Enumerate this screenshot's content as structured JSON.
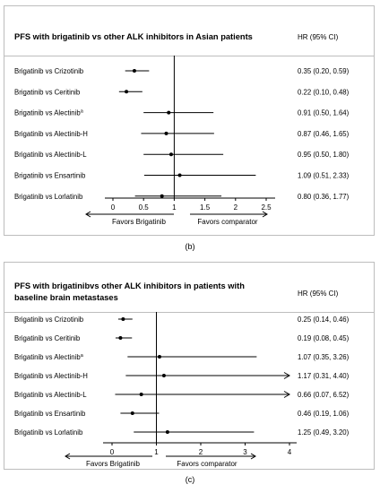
{
  "captions": {
    "b": "(b)",
    "c": "(c)"
  },
  "chart_data": [
    {
      "type": "forest",
      "title": "PFS with brigatinib vs other ALK inhibitors in Asian patients",
      "hr_header": "HR (95% CI)",
      "xlim": [
        0,
        2.5
      ],
      "ref_line": 1,
      "xticks": [
        "0",
        "0.5",
        "1",
        "1.5",
        "2",
        "2.5"
      ],
      "favors_left": "Favors Brigatinib",
      "favors_right": "Favors comparator",
      "rows": [
        {
          "label": "Brigatinib vs Crizotinib",
          "hr": 0.35,
          "lo": 0.2,
          "hi": 0.59,
          "hr_text": "0.35 (0.20, 0.59)"
        },
        {
          "label": "Brigatinib vs Ceritinib",
          "hr": 0.22,
          "lo": 0.1,
          "hi": 0.48,
          "hr_text": "0.22 (0.10, 0.48)"
        },
        {
          "label": "Brigatinib vs Alectinib",
          "sup": "a",
          "hr": 0.91,
          "lo": 0.5,
          "hi": 1.64,
          "hr_text": "0.91 (0.50, 1.64)"
        },
        {
          "label": "Brigatinib vs Alectinib-H",
          "hr": 0.87,
          "lo": 0.46,
          "hi": 1.65,
          "hr_text": "0.87 (0.46, 1.65)"
        },
        {
          "label": "Brigatinib vs Alectinib-L",
          "hr": 0.95,
          "lo": 0.5,
          "hi": 1.8,
          "hr_text": "0.95 (0.50, 1.80)"
        },
        {
          "label": "Brigatinib vs Ensartinib",
          "hr": 1.09,
          "lo": 0.51,
          "hi": 2.33,
          "hr_text": "1.09 (0.51, 2.33)"
        },
        {
          "label": "Brigatinib vs Lorlatinib",
          "hr": 0.8,
          "lo": 0.36,
          "hi": 1.77,
          "hr_text": "0.80 (0.36, 1.77)"
        }
      ]
    },
    {
      "type": "forest",
      "title": "PFS with brigatinibvs other ALK inhibitors in patients with baseline brain metastases",
      "title_lines": [
        "PFS with brigatinibvs other ALK inhibitors in patients with",
        "baseline brain metastases"
      ],
      "hr_header": "HR (95% CI)",
      "xlim": [
        0,
        4
      ],
      "ref_line": 1,
      "xticks": [
        "0",
        "1",
        "2",
        "3",
        "4"
      ],
      "favors_left": "Favors Brigatinib",
      "favors_right": "Favors comparator",
      "rows": [
        {
          "label": "Brigatinib vs Crizotinib",
          "hr": 0.25,
          "lo": 0.14,
          "hi": 0.46,
          "hr_text": "0.25 (0.14, 0.46)"
        },
        {
          "label": "Brigatinib vs Ceritinib",
          "hr": 0.19,
          "lo": 0.08,
          "hi": 0.45,
          "hr_text": "0.19 (0.08, 0.45)"
        },
        {
          "label": "Brigatinib vs Alectinib",
          "sup": "a",
          "hr": 1.07,
          "lo": 0.35,
          "hi": 3.26,
          "hr_text": "1.07 (0.35, 3.26)"
        },
        {
          "label": "Brigatinib vs Alectinib-H",
          "hr": 1.17,
          "lo": 0.31,
          "hi": 4.4,
          "hr_text": "1.17 (0.31, 4.40)"
        },
        {
          "label": "Brigatinib vs Alectinib-L",
          "hr": 0.66,
          "lo": 0.07,
          "hi": 6.52,
          "hr_text": "0.66 (0.07, 6.52)"
        },
        {
          "label": "Brigatinib vs Ensartinib",
          "hr": 0.46,
          "lo": 0.19,
          "hi": 1.06,
          "hr_text": "0.46 (0.19, 1.06)"
        },
        {
          "label": "Brigatinib vs Lorlatinib",
          "hr": 1.25,
          "lo": 0.49,
          "hi": 3.2,
          "hr_text": "1.25 (0.49, 3.20)"
        }
      ]
    }
  ]
}
